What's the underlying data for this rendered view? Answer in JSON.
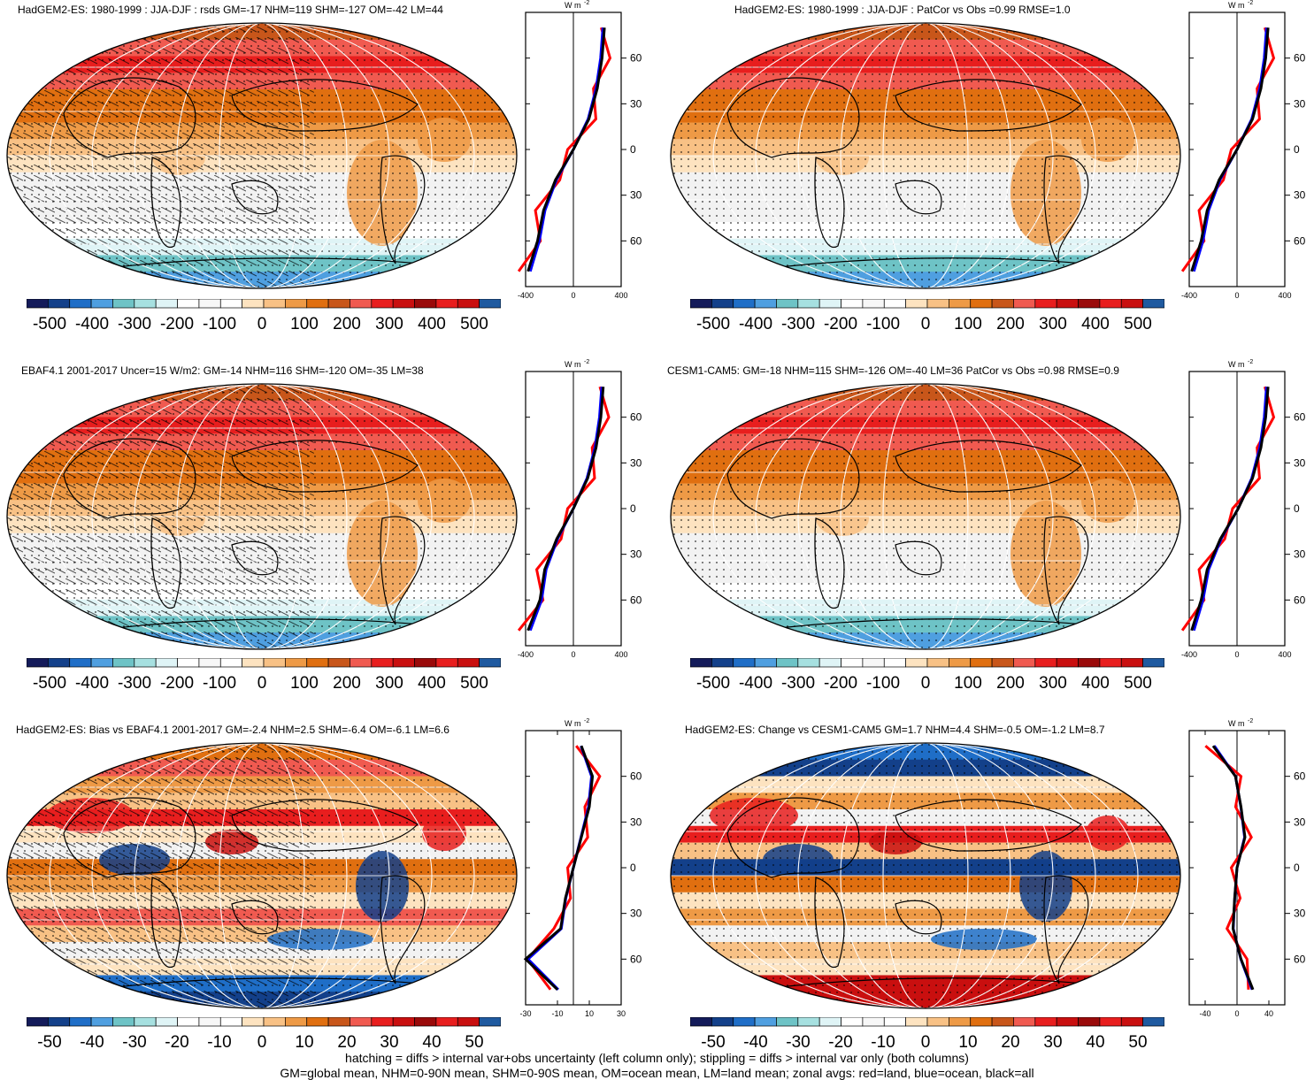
{
  "colors": {
    "diverging_scale": [
      "#141b5a",
      "#13408a",
      "#1f6ec7",
      "#4f9fe0",
      "#6ec3c6",
      "#a6e0e0",
      "#dff4f6",
      "#ffffff",
      "#f2f2f2",
      "#fde3c0",
      "#f8c185",
      "#ee9a46",
      "#e06f10",
      "#c8561a",
      "#f05a50",
      "#e81e1e",
      "#c90f0f",
      "#9a0a0a",
      "#ff2b2b",
      "#d41212",
      "#c01a2a",
      "#1f5aa0"
    ],
    "zonal_land": "#ff0000",
    "zonal_ocean": "#0000ff",
    "zonal_all": "#000000"
  },
  "panels": [
    {
      "id": "p1",
      "title": "HadGEM2-ES: 1980-1999 : JJA-DJF : rsds GM=-17 NHM=119 SHM=-127 OM=-42 LM=44"
    },
    {
      "id": "p2",
      "title": "HadGEM2-ES: 1980-1999 : JJA-DJF : PatCor vs Obs =0.99 RMSE=1.0"
    },
    {
      "id": "p3",
      "title": "EBAF4.1 2001-2017 Uncer=15 W/m2: GM=-14 NHM=116 SHM=-120 OM=-35 LM=38"
    },
    {
      "id": "p4",
      "title": "CESM1-CAM5: GM=-18 NHM=115 SHM=-126 OM=-40 LM=36 PatCor vs Obs =0.98 RMSE=0.9"
    },
    {
      "id": "p5",
      "title": "HadGEM2-ES: Bias vs EBAF4.1 2001-2017 GM=-2.4 NHM=2.5 SHM=-6.4 OM=-6.1 LM=6.6"
    },
    {
      "id": "p6",
      "title": "HadGEM2-ES: Change vs CESM1-CAM5 GM=1.7 NHM=4.4 SHM=-0.5 OM=-1.2 LM=8.7"
    }
  ],
  "colorbar_labels_abs": [
    "-500",
    "-400",
    "-300",
    "-200",
    "-100",
    "0",
    "100",
    "200",
    "300",
    "400",
    "500"
  ],
  "colorbar_labels_diff": [
    "-50",
    "-40",
    "-30",
    "-20",
    "-10",
    "0",
    "10",
    "20",
    "30",
    "40",
    "50"
  ],
  "zonal": {
    "unit_label": "W m",
    "unit_exp": "-2",
    "lat_ticks": [
      "60N",
      "30N",
      "0",
      "30S",
      "60S"
    ],
    "xticks_abs": [
      "-400",
      "0",
      "400"
    ],
    "xticks_p5": [
      "-30",
      "-10",
      "10",
      "30"
    ],
    "xticks_p6": [
      "-40",
      "0",
      "40"
    ]
  },
  "footer": {
    "line1": "hatching = diffs > internal var+obs uncertainty (left column only); stippling = diffs > internal var only (both columns)",
    "line2": "GM=global mean, NHM=0-90N mean, SHM=0-90S mean, OM=ocean mean, LM=land mean; zonal avgs: red=land, blue=ocean, black=all"
  },
  "chart_data": [
    {
      "type": "heatmap",
      "panel": "p1",
      "zonal_profile_lat": [
        -80,
        -60,
        -40,
        -20,
        0,
        20,
        40,
        60,
        80
      ],
      "zonal_all": [
        -380,
        -300,
        -250,
        -150,
        0,
        130,
        200,
        240,
        260
      ],
      "colorbar_range": [
        -500,
        500
      ]
    },
    {
      "type": "heatmap",
      "panel": "p2",
      "zonal_profile_lat": [
        -80,
        -60,
        -40,
        -20,
        0,
        20,
        40,
        60,
        80
      ],
      "zonal_all": [
        -380,
        -300,
        -250,
        -150,
        0,
        130,
        200,
        240,
        260
      ],
      "colorbar_range": [
        -500,
        500
      ]
    },
    {
      "type": "heatmap",
      "panel": "p3",
      "zonal_profile_lat": [
        -80,
        -60,
        -40,
        -20,
        0,
        20,
        40,
        60,
        80
      ],
      "zonal_all": [
        -380,
        -280,
        -240,
        -140,
        0,
        120,
        190,
        230,
        250
      ],
      "colorbar_range": [
        -500,
        500
      ]
    },
    {
      "type": "heatmap",
      "panel": "p4",
      "zonal_profile_lat": [
        -80,
        -60,
        -40,
        -20,
        0,
        20,
        40,
        60,
        80
      ],
      "zonal_all": [
        -380,
        -300,
        -250,
        -140,
        10,
        130,
        200,
        240,
        260
      ],
      "colorbar_range": [
        -500,
        500
      ]
    },
    {
      "type": "heatmap",
      "panel": "p5",
      "zonal_profile_lat": [
        -80,
        -60,
        -40,
        -20,
        0,
        20,
        40,
        60,
        80
      ],
      "zonal_all": [
        -10,
        -30,
        -8,
        -5,
        0,
        5,
        10,
        12,
        5
      ],
      "colorbar_range": [
        -50,
        50
      ]
    },
    {
      "type": "heatmap",
      "panel": "p6",
      "zonal_profile_lat": [
        -80,
        -60,
        -40,
        -20,
        0,
        20,
        40,
        60,
        80
      ],
      "zonal_all": [
        20,
        5,
        -5,
        -3,
        0,
        10,
        5,
        -2,
        -30
      ],
      "colorbar_range": [
        -50,
        50
      ]
    }
  ]
}
